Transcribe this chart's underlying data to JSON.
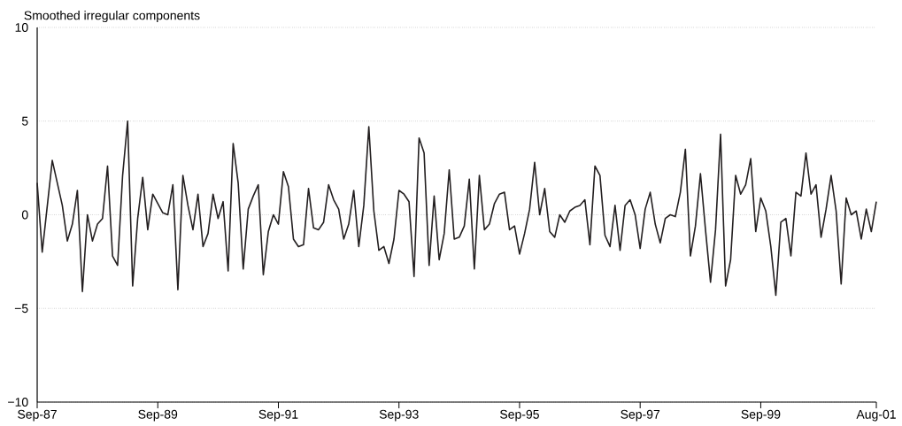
{
  "chart_data": {
    "type": "line",
    "ylabel": "Smoothed irregular components",
    "x": [
      "1987-09",
      "1987-10",
      "1987-12",
      "1988-02",
      "1988-03",
      "1988-04",
      "1988-05",
      "1988-06",
      "1988-07",
      "1988-08",
      "1988-09",
      "1988-10",
      "1988-11",
      "1988-12",
      "1989-01",
      "1989-02",
      "1989-03",
      "1989-04",
      "1989-05",
      "1989-06",
      "1989-07",
      "1989-08",
      "1989-10",
      "1989-11",
      "1989-12",
      "1990-01",
      "1990-02",
      "1990-03",
      "1990-04",
      "1990-05",
      "1990-06",
      "1990-07",
      "1990-08",
      "1990-09",
      "1990-10",
      "1990-11",
      "1990-12",
      "1991-01",
      "1991-02",
      "1991-03",
      "1991-04",
      "1991-05",
      "1991-06",
      "1991-07",
      "1991-08",
      "1991-09",
      "1991-10",
      "1991-11",
      "1991-12",
      "1992-01",
      "1992-02",
      "1992-03",
      "1992-04",
      "1992-05",
      "1992-06",
      "1992-07",
      "1992-08",
      "1992-09",
      "1992-10",
      "1992-11",
      "1992-12",
      "1993-01",
      "1993-02",
      "1993-03",
      "1993-04",
      "1993-05",
      "1993-06",
      "1993-07",
      "1993-08",
      "1993-09",
      "1993-10",
      "1993-11",
      "1993-12",
      "1994-01",
      "1994-02",
      "1994-03",
      "1994-04",
      "1994-05",
      "1994-06",
      "1994-07",
      "1994-08",
      "1994-09",
      "1994-10",
      "1994-11",
      "1994-12",
      "1995-01",
      "1995-02",
      "1995-03",
      "1995-04",
      "1995-05",
      "1995-06",
      "1995-07",
      "1995-08",
      "1995-09",
      "1995-10",
      "1995-11",
      "1995-12",
      "1996-01",
      "1996-02",
      "1996-03",
      "1996-04",
      "1996-05",
      "1996-06",
      "1996-07",
      "1996-08",
      "1996-09",
      "1996-10",
      "1996-11",
      "1996-12",
      "1997-01",
      "1997-02",
      "1997-03",
      "1997-04",
      "1997-05",
      "1997-06",
      "1997-07",
      "1997-08",
      "1997-09",
      "1997-10",
      "1997-11",
      "1997-12",
      "1998-01",
      "1998-02",
      "1998-03",
      "1998-04",
      "1998-05",
      "1998-06",
      "1998-07",
      "1998-08",
      "1998-09",
      "1998-10",
      "1998-11",
      "1998-12",
      "1999-01",
      "1999-02",
      "1999-03",
      "1999-04",
      "1999-05",
      "1999-06",
      "1999-07",
      "1999-08",
      "1999-09",
      "1999-10",
      "1999-11",
      "1999-12",
      "2000-01",
      "2000-02",
      "2000-03",
      "2000-04",
      "2000-05",
      "2000-06",
      "2000-07",
      "2000-08",
      "2000-09",
      "2000-10",
      "2000-11",
      "2000-12",
      "2001-01",
      "2001-02",
      "2001-03",
      "2001-04",
      "2001-05",
      "2001-06",
      "2001-07",
      "2001-08"
    ],
    "series": [
      {
        "color": "#231f20",
        "values": [
          1.7,
          -2.0,
          2.9,
          0.5,
          -1.4,
          -0.5,
          1.3,
          -4.1,
          0.0,
          -1.4,
          -0.5,
          -0.2,
          2.6,
          -2.2,
          -2.7,
          2.1,
          5.0,
          -3.8,
          -0.2,
          2.0,
          -0.8,
          1.1,
          0.1,
          0.0,
          1.6,
          -4.0,
          2.1,
          0.5,
          -0.8,
          1.1,
          -1.7,
          -1.0,
          1.1,
          -0.2,
          0.7,
          -3.0,
          3.8,
          1.7,
          -2.9,
          0.3,
          1.0,
          1.6,
          -3.2,
          -0.9,
          0.0,
          -0.5,
          2.3,
          1.5,
          -1.3,
          -1.7,
          -1.6,
          1.4,
          -0.7,
          -0.8,
          -0.4,
          1.6,
          0.8,
          0.3,
          -1.3,
          -0.5,
          1.3,
          -1.7,
          0.5,
          4.7,
          0.2,
          -1.9,
          -1.7,
          -2.6,
          -1.3,
          1.3,
          1.1,
          0.7,
          -3.3,
          4.1,
          3.3,
          -2.7,
          1.0,
          -2.4,
          -1.0,
          2.4,
          -1.3,
          -1.2,
          -0.6,
          1.9,
          -2.9,
          2.1,
          -0.8,
          -0.5,
          0.6,
          1.1,
          1.2,
          -0.8,
          -0.6,
          -2.1,
          -1.0,
          0.3,
          2.8,
          0.0,
          1.4,
          -0.9,
          -1.2,
          0.0,
          -0.4,
          0.2,
          0.4,
          0.5,
          0.8,
          -1.6,
          2.6,
          2.1,
          -1.1,
          -1.7,
          0.5,
          -1.9,
          0.5,
          0.8,
          0.0,
          -1.8,
          0.3,
          1.2,
          -0.5,
          -1.5,
          -0.2,
          0.0,
          -0.1,
          1.2,
          3.5,
          -2.2,
          -0.6,
          2.2,
          -0.8,
          -3.6,
          -0.8,
          4.3,
          -3.8,
          -2.4,
          2.1,
          1.1,
          1.6,
          3.0,
          -0.9,
          0.9,
          0.2,
          -1.7,
          -4.3,
          -0.4,
          -0.2,
          -2.2,
          1.2,
          1.0,
          3.3,
          1.1,
          1.6,
          -1.2,
          0.3,
          2.1,
          0.2,
          -3.7,
          0.9,
          0.0,
          0.2,
          -1.3,
          0.3,
          -0.9,
          0.7
        ]
      }
    ],
    "xlim": [
      "1987-09",
      "2001-08"
    ],
    "xticks": [
      {
        "value": "1987-09",
        "label": "Sep-87"
      },
      {
        "value": "1989-09",
        "label": "Sep-89"
      },
      {
        "value": "1991-09",
        "label": "Sep-91"
      },
      {
        "value": "1993-09",
        "label": "Sep-93"
      },
      {
        "value": "1995-09",
        "label": "Sep-95"
      },
      {
        "value": "1997-09",
        "label": "Sep-97"
      },
      {
        "value": "1999-09",
        "label": "Sep-99"
      },
      {
        "value": "2001-08",
        "label": "Aug-01"
      }
    ],
    "ylim": [
      -10,
      10
    ],
    "yticks": [
      10,
      5,
      0,
      {
        "value": -5,
        "label": "−5"
      },
      {
        "value": -10,
        "label": "−10"
      }
    ],
    "grid": "y",
    "marker": "none",
    "line_style": "solid"
  }
}
